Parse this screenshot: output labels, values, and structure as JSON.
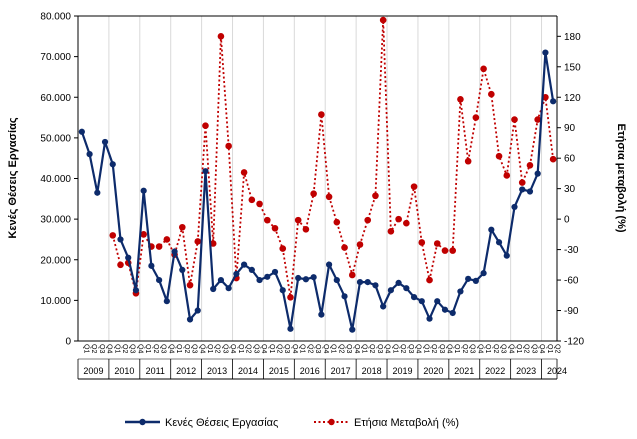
{
  "chart_data": {
    "type": "line",
    "ylabel_left": "Κενές Θέσεις Εργασίας",
    "ylabel_right": "Ετήσια μεταβολή (%)",
    "left_ticks": [
      "0",
      "10.000",
      "20.000",
      "30.000",
      "40.000",
      "50.000",
      "60.000",
      "70.000",
      "80.000"
    ],
    "right_ticks": [
      "-120",
      "-90",
      "-60",
      "-30",
      "0",
      "30",
      "60",
      "90",
      "120",
      "150",
      "180"
    ],
    "ylim_left": [
      0,
      80000
    ],
    "ylim_right": [
      -120,
      200
    ],
    "years": [
      "2009",
      "2010",
      "2011",
      "2012",
      "2013",
      "2014",
      "2015",
      "2016",
      "2017",
      "2018",
      "2019",
      "2020",
      "2021",
      "2022",
      "2023",
      "2024"
    ],
    "quarter_labels": [
      "Q1",
      "Q2",
      "Q3",
      "Q4"
    ],
    "grid": "vertical at year boundaries",
    "legend_position": "bottom",
    "series": [
      {
        "name": "Κενές Θέσεις Εργασίας",
        "axis": "left",
        "color": "#0d2b6b",
        "style": "solid-marker",
        "values": [
          51500,
          46000,
          36500,
          49000,
          43500,
          25000,
          20500,
          12500,
          37000,
          18500,
          15000,
          9800,
          22000,
          17500,
          5300,
          7500,
          41800,
          12800,
          15000,
          13000,
          16500,
          18800,
          17500,
          15000,
          15800,
          17000,
          12500,
          3000,
          15500,
          15200,
          15700,
          6500,
          18800,
          15000,
          11000,
          2800,
          14500,
          14500,
          13700,
          8500,
          12500,
          14300,
          13000,
          10800,
          9800,
          5500,
          9800,
          7700,
          6900,
          12200,
          15300,
          14800,
          16700,
          27400,
          24300,
          21000,
          33000,
          37300,
          36800,
          41200,
          71000,
          59000
        ]
      },
      {
        "name": "Ετήσια Μεταβολή (%)",
        "axis": "right",
        "color": "#c00000",
        "style": "dotted-marker",
        "values": [
          null,
          null,
          null,
          null,
          -16,
          -45,
          -43,
          -73,
          -15,
          -27,
          -27,
          -20,
          -35,
          -8,
          -65,
          -22,
          92,
          -24,
          180,
          72,
          -58,
          46,
          19,
          15,
          -1,
          -9,
          -29,
          -77,
          -1,
          -10,
          25,
          103,
          22,
          -3,
          -28,
          -55,
          -25,
          -1,
          23,
          196,
          -12,
          0,
          -4,
          32,
          -23,
          -60,
          -24,
          -31,
          -31,
          118,
          57,
          100,
          148,
          123,
          62,
          43,
          98,
          36,
          53,
          98,
          120,
          59
        ]
      }
    ]
  }
}
